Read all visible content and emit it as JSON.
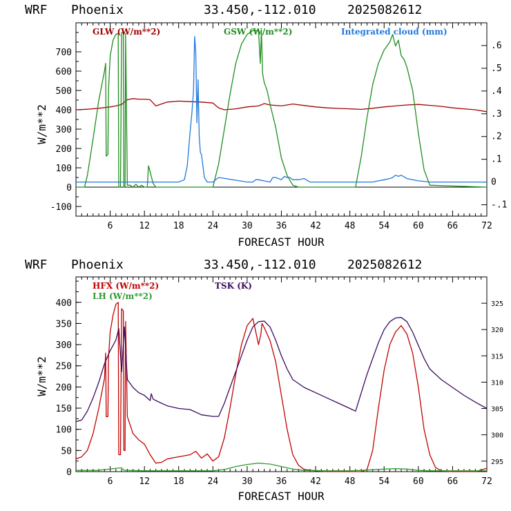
{
  "header": {
    "model": "WRF",
    "station": "Phoenix",
    "coords": "33.450,-112.010",
    "init": "2025082612"
  },
  "colors": {
    "glw": "#a00000",
    "gsw": "#1e8c1e",
    "cloud": "#1e78dc",
    "hfx": "#c00000",
    "lh": "#2e9a2e",
    "tsk": "#3a0a5a"
  },
  "chart_data": [
    {
      "type": "line",
      "xlabel": "FORECAST HOUR",
      "ylabel": "W/m**2",
      "xlim": [
        0,
        72
      ],
      "ylim": [
        -150,
        850
      ],
      "xticks": [
        6,
        12,
        18,
        24,
        30,
        36,
        42,
        48,
        54,
        60,
        66,
        72
      ],
      "xtick_labels": [
        "6",
        "12",
        "18",
        "24",
        "30",
        "36",
        "42",
        "48",
        "54",
        "60",
        "66",
        "72"
      ],
      "yticks": [
        -100,
        0,
        100,
        200,
        300,
        400,
        500,
        600,
        700
      ],
      "ytick_labels": [
        "-100",
        "0",
        "100",
        "200",
        "300",
        "400",
        "500",
        "600",
        "700"
      ],
      "y2lim": [
        -0.15,
        0.7
      ],
      "y2ticks": [
        -0.1,
        0,
        0.1,
        0.2,
        0.3,
        0.4,
        0.5,
        0.6
      ],
      "y2tick_labels": [
        "-.1",
        "0",
        ".1",
        ".2",
        ".3",
        ".4",
        ".5",
        ".6"
      ],
      "series": [
        {
          "name": "GLW (W/m**2)",
          "axis": "left",
          "color_key": "glw",
          "x": [
            0,
            2,
            4,
            6,
            7,
            8,
            9,
            10,
            11,
            12,
            13,
            14,
            16,
            18,
            20,
            22,
            24,
            25,
            26,
            28,
            30,
            32,
            33,
            34,
            36,
            38,
            40,
            42,
            44,
            46,
            48,
            50,
            52,
            54,
            56,
            58,
            60,
            62,
            64,
            66,
            68,
            70,
            72
          ],
          "y": [
            400,
            403,
            408,
            415,
            420,
            428,
            452,
            458,
            455,
            455,
            452,
            420,
            440,
            445,
            442,
            440,
            435,
            410,
            400,
            405,
            415,
            420,
            432,
            425,
            420,
            430,
            422,
            415,
            410,
            407,
            405,
            402,
            408,
            415,
            420,
            425,
            428,
            423,
            418,
            410,
            405,
            400,
            390
          ]
        },
        {
          "name": "GSW (W/m**2)",
          "axis": "left",
          "color_key": "gsw",
          "x": [
            0,
            1.5,
            2,
            3,
            4,
            5,
            5.2,
            5.3,
            5.6,
            5.7,
            6,
            6.5,
            7,
            7.4,
            7.5,
            7.6,
            7.8,
            8,
            8.3,
            8.4,
            8.6,
            8.7,
            9,
            9.5,
            10,
            10.5,
            11,
            11.5,
            12,
            12.5,
            12.7,
            13,
            13.5,
            14,
            24,
            25,
            26,
            27,
            28,
            29,
            30,
            31,
            32,
            32.3,
            32.5,
            32.7,
            33,
            33.5,
            34,
            35,
            36,
            37,
            38,
            39,
            40,
            48,
            49,
            50,
            51,
            52,
            53,
            54,
            55,
            55.5,
            56,
            56.5,
            57,
            57.5,
            58,
            59,
            60,
            61,
            62,
            72
          ],
          "y": [
            0,
            0,
            60,
            250,
            450,
            600,
            640,
            160,
            170,
            500,
            680,
            760,
            790,
            795,
            0,
            0,
            0,
            800,
            800,
            0,
            0,
            795,
            10,
            10,
            0,
            15,
            0,
            10,
            0,
            0,
            110,
            80,
            20,
            0,
            0,
            120,
            300,
            480,
            640,
            740,
            790,
            810,
            808,
            640,
            810,
            590,
            540,
            500,
            430,
            310,
            150,
            60,
            10,
            0,
            0,
            0,
            0,
            160,
            360,
            530,
            640,
            710,
            750,
            790,
            730,
            760,
            680,
            660,
            620,
            500,
            280,
            90,
            10,
            0
          ]
        },
        {
          "name": "Integrated cloud (mm)",
          "axis": "right",
          "color_key": "cloud",
          "x": [
            0,
            18,
            19,
            19.5,
            20,
            20.3,
            20.6,
            20.8,
            21,
            21.2,
            21.4,
            21.6,
            21.8,
            22,
            22.3,
            22.5,
            23,
            24,
            25,
            30,
            31,
            31.5,
            32,
            34,
            34.5,
            35,
            36,
            36.5,
            37,
            37.5,
            38,
            39,
            40,
            41,
            42,
            52,
            53,
            54,
            55,
            55.5,
            56,
            56.5,
            57,
            58,
            59,
            60,
            62,
            72
          ],
          "y": [
            0,
            0,
            0.01,
            0.07,
            0.22,
            0.3,
            0.4,
            0.64,
            0.57,
            0.26,
            0.45,
            0.2,
            0.13,
            0.12,
            0.06,
            0.02,
            0,
            0,
            0.02,
            0,
            0,
            0.01,
            0.01,
            0,
            0.02,
            0.02,
            0.01,
            0.025,
            0.02,
            0.02,
            0.01,
            0.01,
            0.015,
            0,
            0,
            0,
            0.005,
            0.01,
            0.015,
            0.02,
            0.03,
            0.025,
            0.03,
            0.015,
            0.01,
            0.005,
            0,
            0
          ]
        }
      ]
    },
    {
      "type": "line",
      "xlabel": "FORECAST HOUR",
      "ylabel": "W/m**2",
      "xlim": [
        0,
        72
      ],
      "ylim": [
        0,
        460
      ],
      "xticks": [
        6,
        12,
        18,
        24,
        30,
        36,
        42,
        48,
        54,
        60,
        66,
        72
      ],
      "xtick_labels": [
        "6",
        "12",
        "18",
        "24",
        "30",
        "36",
        "42",
        "48",
        "54",
        "60",
        "66",
        "72"
      ],
      "yticks": [
        0,
        50,
        100,
        150,
        200,
        250,
        300,
        350,
        400
      ],
      "ytick_labels": [
        "0",
        "50",
        "100",
        "150",
        "200",
        "250",
        "300",
        "350",
        "400"
      ],
      "y2lim": [
        293,
        330
      ],
      "y2ticks": [
        295,
        300,
        305,
        310,
        315,
        320,
        325
      ],
      "y2tick_labels": [
        "295",
        "300",
        "305",
        "310",
        "315",
        "320",
        "325"
      ],
      "series": [
        {
          "name": "HFX (W/m**2)",
          "axis": "left",
          "color_key": "hfx",
          "x": [
            0,
            1,
            2,
            3,
            4,
            5,
            5.2,
            5.3,
            5.6,
            5.7,
            6,
            6.5,
            7,
            7.4,
            7.5,
            7.6,
            7.8,
            8,
            8.3,
            8.4,
            8.6,
            8.7,
            9,
            10,
            11,
            12,
            13,
            14,
            15,
            16,
            18,
            20,
            21,
            22,
            23,
            24,
            25,
            26,
            27,
            28,
            29,
            30,
            31,
            32,
            32.4,
            32.6,
            33,
            34,
            35,
            36,
            37,
            38,
            39,
            40,
            42,
            44,
            48,
            50,
            51,
            52,
            53,
            54,
            55,
            56,
            57,
            58,
            59,
            60,
            61,
            62,
            63,
            64,
            66,
            70,
            72
          ],
          "y": [
            30,
            35,
            50,
            90,
            150,
            220,
            280,
            130,
            130,
            270,
            330,
            370,
            395,
            400,
            40,
            40,
            40,
            385,
            380,
            50,
            50,
            355,
            130,
            90,
            75,
            65,
            40,
            20,
            22,
            30,
            35,
            40,
            48,
            32,
            42,
            25,
            35,
            80,
            150,
            230,
            300,
            345,
            362,
            300,
            325,
            350,
            340,
            310,
            260,
            180,
            100,
            40,
            15,
            5,
            2,
            0,
            0,
            0,
            5,
            50,
            150,
            240,
            300,
            330,
            345,
            325,
            280,
            200,
            100,
            40,
            10,
            2,
            0,
            0,
            8
          ]
        },
        {
          "name": "LH (W/m**2)",
          "axis": "left",
          "color_key": "lh",
          "x": [
            0,
            4,
            5,
            6,
            7,
            8,
            8.5,
            9,
            12,
            24,
            26,
            28,
            30,
            32,
            34,
            36,
            38,
            40,
            44,
            48,
            50,
            54,
            56,
            58,
            60,
            62,
            72
          ],
          "y": [
            3,
            3,
            5,
            6,
            8,
            9,
            3,
            3,
            2,
            2,
            5,
            12,
            17,
            20,
            18,
            12,
            6,
            3,
            2,
            2,
            3,
            6,
            7,
            6,
            3,
            2,
            2
          ]
        },
        {
          "name": "TSK (K)",
          "axis": "right",
          "color_key": "tsk",
          "x": [
            0,
            1,
            2,
            3,
            4,
            5,
            6,
            7,
            7.5,
            8,
            8.5,
            9,
            10,
            11,
            12,
            13,
            13.2,
            13.5,
            14,
            16,
            18,
            20,
            22,
            24,
            25,
            26,
            27,
            28,
            29,
            30,
            31,
            32,
            33,
            34,
            35,
            36,
            37,
            38,
            40,
            42,
            44,
            46,
            48,
            49,
            50,
            51,
            52,
            53,
            54,
            55,
            56,
            57,
            58,
            59,
            60,
            61,
            62,
            64,
            66,
            68,
            70,
            72
          ],
          "y": [
            302.5,
            302.8,
            304.5,
            307,
            310,
            313.5,
            316,
            318,
            320.2,
            312,
            320.5,
            310.5,
            309,
            308,
            307.5,
            306.5,
            307.8,
            306.8,
            306.5,
            305.5,
            305,
            304.8,
            303.8,
            303.5,
            303.5,
            306,
            309,
            312,
            315,
            318,
            320.5,
            321.5,
            321.6,
            320.5,
            318,
            315,
            312.5,
            310.5,
            309,
            308,
            307,
            306,
            305,
            304.5,
            308,
            311.5,
            314.5,
            317.5,
            320,
            321.5,
            322.2,
            322.3,
            321.5,
            319.5,
            317,
            314.5,
            312.5,
            310.5,
            309,
            307.5,
            306.2,
            305
          ]
        }
      ]
    }
  ]
}
